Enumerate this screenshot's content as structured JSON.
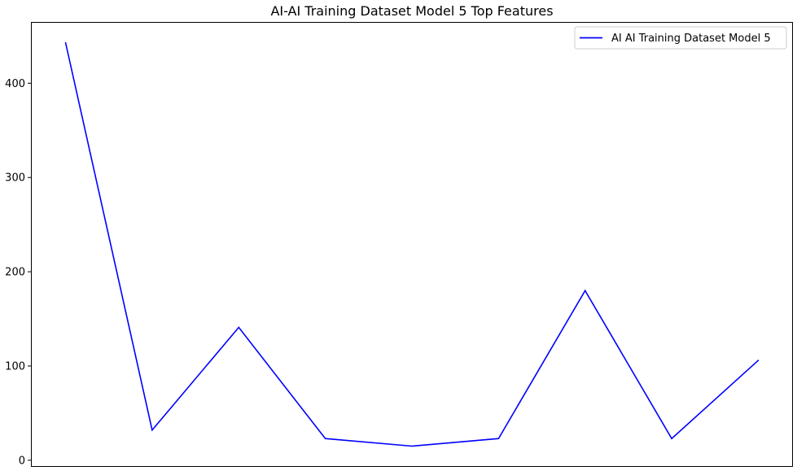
{
  "chart_data": {
    "type": "line",
    "title": "AI-AI Training Dataset Model 5 Top Features",
    "xlabel": "",
    "ylabel": "",
    "x": [
      0,
      1,
      2,
      3,
      4,
      5,
      6,
      7,
      8
    ],
    "x_tick_labels_shown": false,
    "series": [
      {
        "name": "AI AI Training Dataset Model 5",
        "color": "#0000ff",
        "values": [
          443,
          32,
          141,
          23,
          15,
          23,
          180,
          23,
          106
        ]
      }
    ],
    "ylim": [
      -7,
      465
    ],
    "yticks": [
      0,
      100,
      200,
      300,
      400
    ],
    "grid": false,
    "legend_position": "top-right"
  }
}
